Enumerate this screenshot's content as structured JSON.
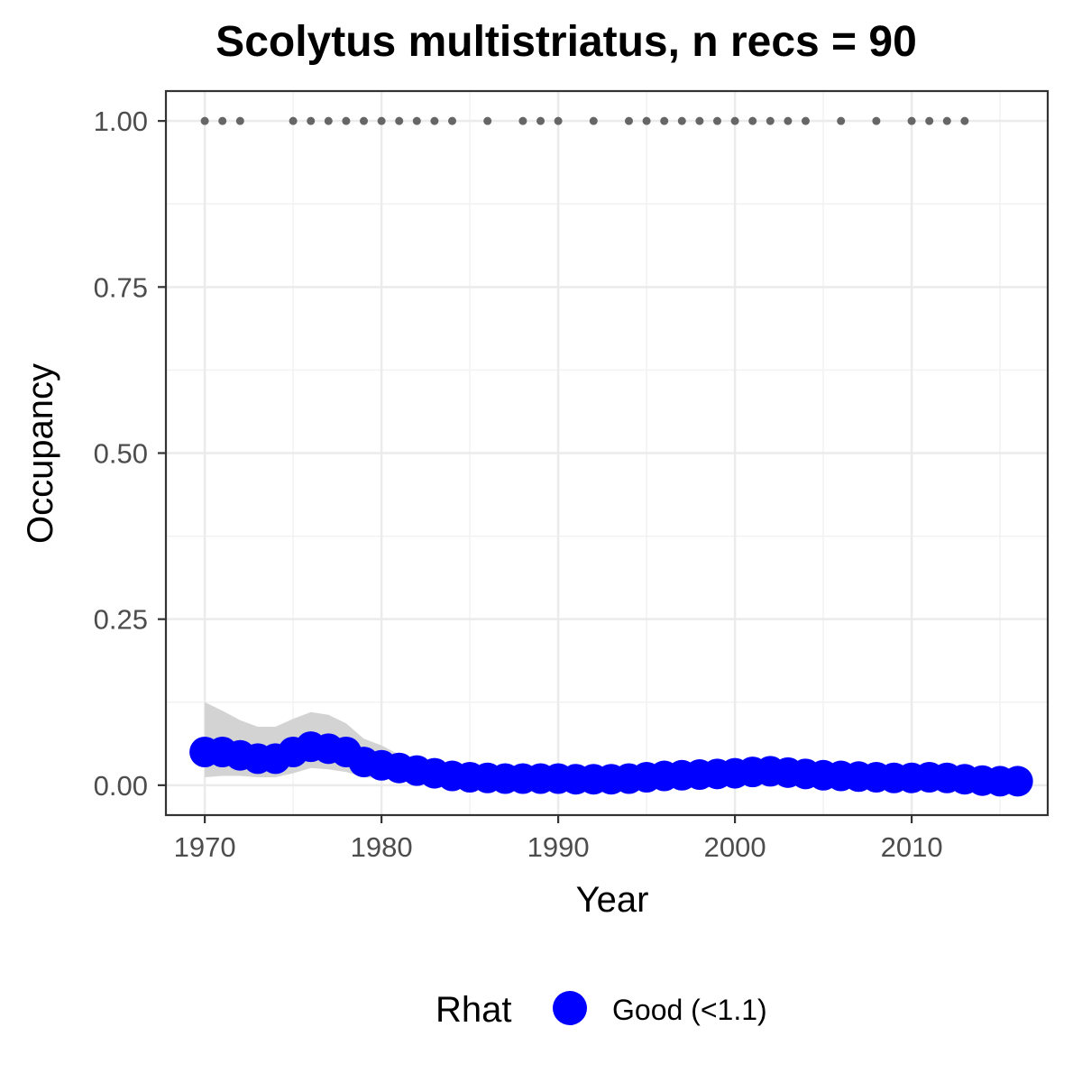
{
  "chart_data": {
    "type": "line",
    "title": "Scolytus multistriatus, n recs = 90",
    "xlabel": "Year",
    "ylabel": "Occupancy",
    "xlim": [
      1967.8,
      2017.7
    ],
    "ylim": [
      -0.045,
      1.045
    ],
    "x_ticks": [
      1970,
      1980,
      1990,
      2000,
      2010
    ],
    "x_tick_labels": [
      "1970",
      "1980",
      "1990",
      "2000",
      "2010"
    ],
    "y_ticks": [
      0,
      0.25,
      0.5,
      0.75,
      1.0
    ],
    "y_tick_labels": [
      "0.00",
      "0.25",
      "0.50",
      "0.75",
      "1.00"
    ],
    "grid": true,
    "legend": {
      "position": "bottom",
      "title": "Rhat",
      "items": [
        {
          "label": "Good (<1.1)",
          "color": "#0000ff"
        }
      ]
    },
    "colors": {
      "estimate": "#0000ff",
      "ci_band": "#d3d3d3",
      "records": "#666666"
    },
    "series": [
      {
        "name": "Good (<1.1)",
        "x": [
          1970,
          1971,
          1972,
          1973,
          1974,
          1975,
          1976,
          1977,
          1978,
          1979,
          1980,
          1981,
          1982,
          1983,
          1984,
          1985,
          1986,
          1987,
          1988,
          1989,
          1990,
          1991,
          1992,
          1993,
          1994,
          1995,
          1996,
          1997,
          1998,
          1999,
          2000,
          2001,
          2002,
          2003,
          2004,
          2005,
          2006,
          2007,
          2008,
          2009,
          2010,
          2011,
          2012,
          2013,
          2014,
          2015,
          2016
        ],
        "y": [
          0.05,
          0.05,
          0.045,
          0.04,
          0.04,
          0.05,
          0.058,
          0.055,
          0.05,
          0.035,
          0.03,
          0.026,
          0.022,
          0.018,
          0.014,
          0.012,
          0.011,
          0.01,
          0.01,
          0.01,
          0.01,
          0.009,
          0.009,
          0.009,
          0.01,
          0.012,
          0.014,
          0.015,
          0.016,
          0.017,
          0.018,
          0.02,
          0.021,
          0.019,
          0.017,
          0.015,
          0.014,
          0.013,
          0.012,
          0.011,
          0.011,
          0.012,
          0.011,
          0.009,
          0.007,
          0.006,
          0.006
        ]
      }
    ],
    "ci_band": {
      "x": [
        1970,
        1971,
        1972,
        1973,
        1974,
        1975,
        1976,
        1977,
        1978,
        1979,
        1980,
        1981,
        1982,
        1983,
        1984,
        1985,
        1986,
        1987,
        1988,
        1989,
        1990,
        1991,
        1992,
        1993,
        1994,
        1995,
        1996,
        1997,
        1998,
        1999,
        2000,
        2001,
        2002,
        2003,
        2004,
        2005,
        2006,
        2007,
        2008,
        2009,
        2010,
        2011,
        2012,
        2013,
        2014,
        2015,
        2016
      ],
      "upper": [
        0.125,
        0.112,
        0.098,
        0.088,
        0.088,
        0.1,
        0.11,
        0.106,
        0.093,
        0.07,
        0.06,
        0.046,
        0.036,
        0.03,
        0.026,
        0.023,
        0.021,
        0.02,
        0.02,
        0.02,
        0.02,
        0.019,
        0.019,
        0.019,
        0.02,
        0.022,
        0.024,
        0.025,
        0.026,
        0.027,
        0.028,
        0.03,
        0.031,
        0.029,
        0.027,
        0.025,
        0.024,
        0.023,
        0.022,
        0.021,
        0.021,
        0.022,
        0.021,
        0.019,
        0.017,
        0.016,
        0.016
      ],
      "lower": [
        0.012,
        0.014,
        0.014,
        0.012,
        0.012,
        0.018,
        0.026,
        0.024,
        0.02,
        0.012,
        0.01,
        0.01,
        0.009,
        0.007,
        0.005,
        0.004,
        0.003,
        0.002,
        0.002,
        0.002,
        0.002,
        0.001,
        0.001,
        0.001,
        0.002,
        0.003,
        0.005,
        0.006,
        0.007,
        0.008,
        0.009,
        0.011,
        0.012,
        0.01,
        0.008,
        0.006,
        0.005,
        0.004,
        0.003,
        0.002,
        0.002,
        0.003,
        0.002,
        0.001,
        0.0,
        0.0,
        0.0
      ]
    },
    "records": {
      "y": 1.0,
      "x": [
        1970,
        1971,
        1972,
        1975,
        1976,
        1977,
        1978,
        1979,
        1980,
        1981,
        1982,
        1983,
        1984,
        1986,
        1988,
        1989,
        1990,
        1992,
        1994,
        1995,
        1996,
        1997,
        1998,
        1999,
        2000,
        2001,
        2002,
        2003,
        2004,
        2006,
        2008,
        2010,
        2011,
        2012,
        2013
      ]
    }
  }
}
